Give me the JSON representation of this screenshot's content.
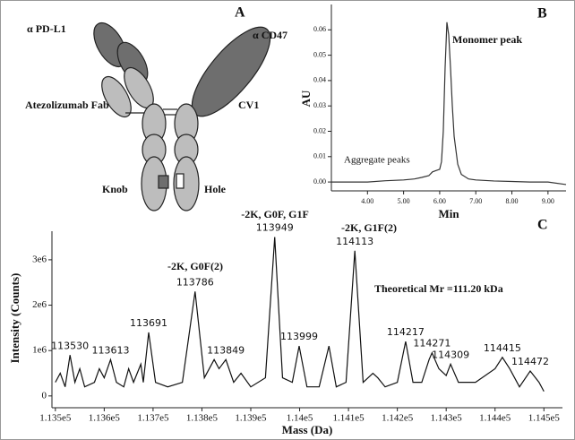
{
  "diagram": {
    "panel_label": "A",
    "labels": [
      "α PD-L1",
      "α CD47",
      "Atezolizumab Fab",
      "CV1",
      "Knob",
      "Hole"
    ]
  },
  "chart_data": [
    {
      "type": "line",
      "panel_label": "B",
      "xlabel": "Min",
      "ylabel": "AU",
      "annotations": [
        "Monomer peak",
        "Aggregate peaks"
      ],
      "x": [
        3.0,
        3.5,
        4.0,
        4.5,
        5.0,
        5.3,
        5.5,
        5.7,
        5.8,
        5.9,
        6.0,
        6.05,
        6.1,
        6.15,
        6.2,
        6.25,
        6.3,
        6.35,
        6.4,
        6.5,
        6.6,
        6.8,
        7.0,
        7.5,
        8.0,
        8.5,
        9.0,
        9.5
      ],
      "values": [
        0,
        0,
        0,
        0.0005,
        0.0008,
        0.0012,
        0.0018,
        0.0025,
        0.004,
        0.0045,
        0.005,
        0.008,
        0.02,
        0.045,
        0.063,
        0.058,
        0.045,
        0.03,
        0.018,
        0.007,
        0.003,
        0.0012,
        0.0008,
        0.0004,
        0.0002,
        0,
        0,
        -0.001
      ],
      "color": "#333333",
      "xlim": [
        3.0,
        9.5
      ],
      "xticks": [
        {
          "value": 4,
          "label": "4.00"
        },
        {
          "value": 5,
          "label": "5.00"
        },
        {
          "value": 6,
          "label": "6.00"
        },
        {
          "value": 7,
          "label": "7.00"
        },
        {
          "value": 8,
          "label": "8.00"
        },
        {
          "value": 9,
          "label": "9.00"
        }
      ],
      "ylim": [
        -0.0035,
        0.07
      ],
      "yticks": [
        {
          "value": 0,
          "label": "0.00"
        },
        {
          "value": 0.01,
          "label": "0.01"
        },
        {
          "value": 0.02,
          "label": "0.02"
        },
        {
          "value": 0.03,
          "label": "0.03"
        },
        {
          "value": 0.04,
          "label": "0.04"
        },
        {
          "value": 0.05,
          "label": "0.05"
        },
        {
          "value": 0.06,
          "label": "0.06"
        }
      ]
    },
    {
      "type": "line",
      "panel_label": "C",
      "xlabel": "Mass (Da)",
      "ylabel": "Intensity (Counts)",
      "annotations": [
        "-2K, G0F(2)",
        "-2K, G0F, G1F",
        "-2K, G1F(2)",
        "Theoretical Mr =111.20 kDa"
      ],
      "x": [
        113500,
        113510,
        113520,
        113530,
        113540,
        113550,
        113560,
        113580,
        113590,
        113600,
        113613,
        113625,
        113640,
        113650,
        113660,
        113675,
        113680,
        113691,
        113705,
        113730,
        113760,
        113786,
        113805,
        113825,
        113835,
        113849,
        113865,
        113880,
        113900,
        113930,
        113949,
        113965,
        113985,
        113999,
        114015,
        114040,
        114060,
        114075,
        114095,
        114113,
        114130,
        114150,
        114160,
        114175,
        114200,
        114217,
        114232,
        114250,
        114265,
        114271,
        114285,
        114300,
        114309,
        114325,
        114360,
        114400,
        114415,
        114430,
        114450,
        114472,
        114490,
        114500
      ],
      "values": [
        300000,
        500000,
        200000,
        900000,
        300000,
        600000,
        200000,
        300000,
        600000,
        400000,
        800000,
        300000,
        200000,
        600000,
        300000,
        700000,
        300000,
        1400000,
        300000,
        200000,
        300000,
        2300000,
        400000,
        800000,
        600000,
        800000,
        300000,
        500000,
        200000,
        400000,
        3500000,
        400000,
        300000,
        1100000,
        200000,
        200000,
        1100000,
        200000,
        300000,
        3200000,
        300000,
        500000,
        400000,
        200000,
        300000,
        1200000,
        300000,
        300000,
        800000,
        950000,
        600000,
        450000,
        700000,
        300000,
        300000,
        600000,
        850000,
        600000,
        200000,
        550000,
        300000,
        100000
      ],
      "peak_labels": [
        113530,
        113613,
        113691,
        113786,
        113849,
        113949,
        113999,
        114113,
        114217,
        114271,
        114309,
        114415,
        114472
      ],
      "color": "#111111",
      "xlim": [
        113493,
        114538
      ],
      "xticks": [
        {
          "value": 113500,
          "label": "1.135e5"
        },
        {
          "value": 113600,
          "label": "1.136e5"
        },
        {
          "value": 113700,
          "label": "1.137e5"
        },
        {
          "value": 113800,
          "label": "1.138e5"
        },
        {
          "value": 113900,
          "label": "1.139e5"
        },
        {
          "value": 114000,
          "label": "1.14e5"
        },
        {
          "value": 114100,
          "label": "1.141e5"
        },
        {
          "value": 114200,
          "label": "1.142e5"
        },
        {
          "value": 114300,
          "label": "1.143e5"
        },
        {
          "value": 114400,
          "label": "1.144e5"
        },
        {
          "value": 114500,
          "label": "1.145e5"
        }
      ],
      "ylim": [
        -260000,
        3630000
      ],
      "yticks": [
        0,
        {
          "value": 1000000,
          "label": "1e6"
        },
        {
          "value": 2000000,
          "label": "2e6"
        },
        {
          "value": 3000000,
          "label": "3e6"
        }
      ]
    }
  ]
}
